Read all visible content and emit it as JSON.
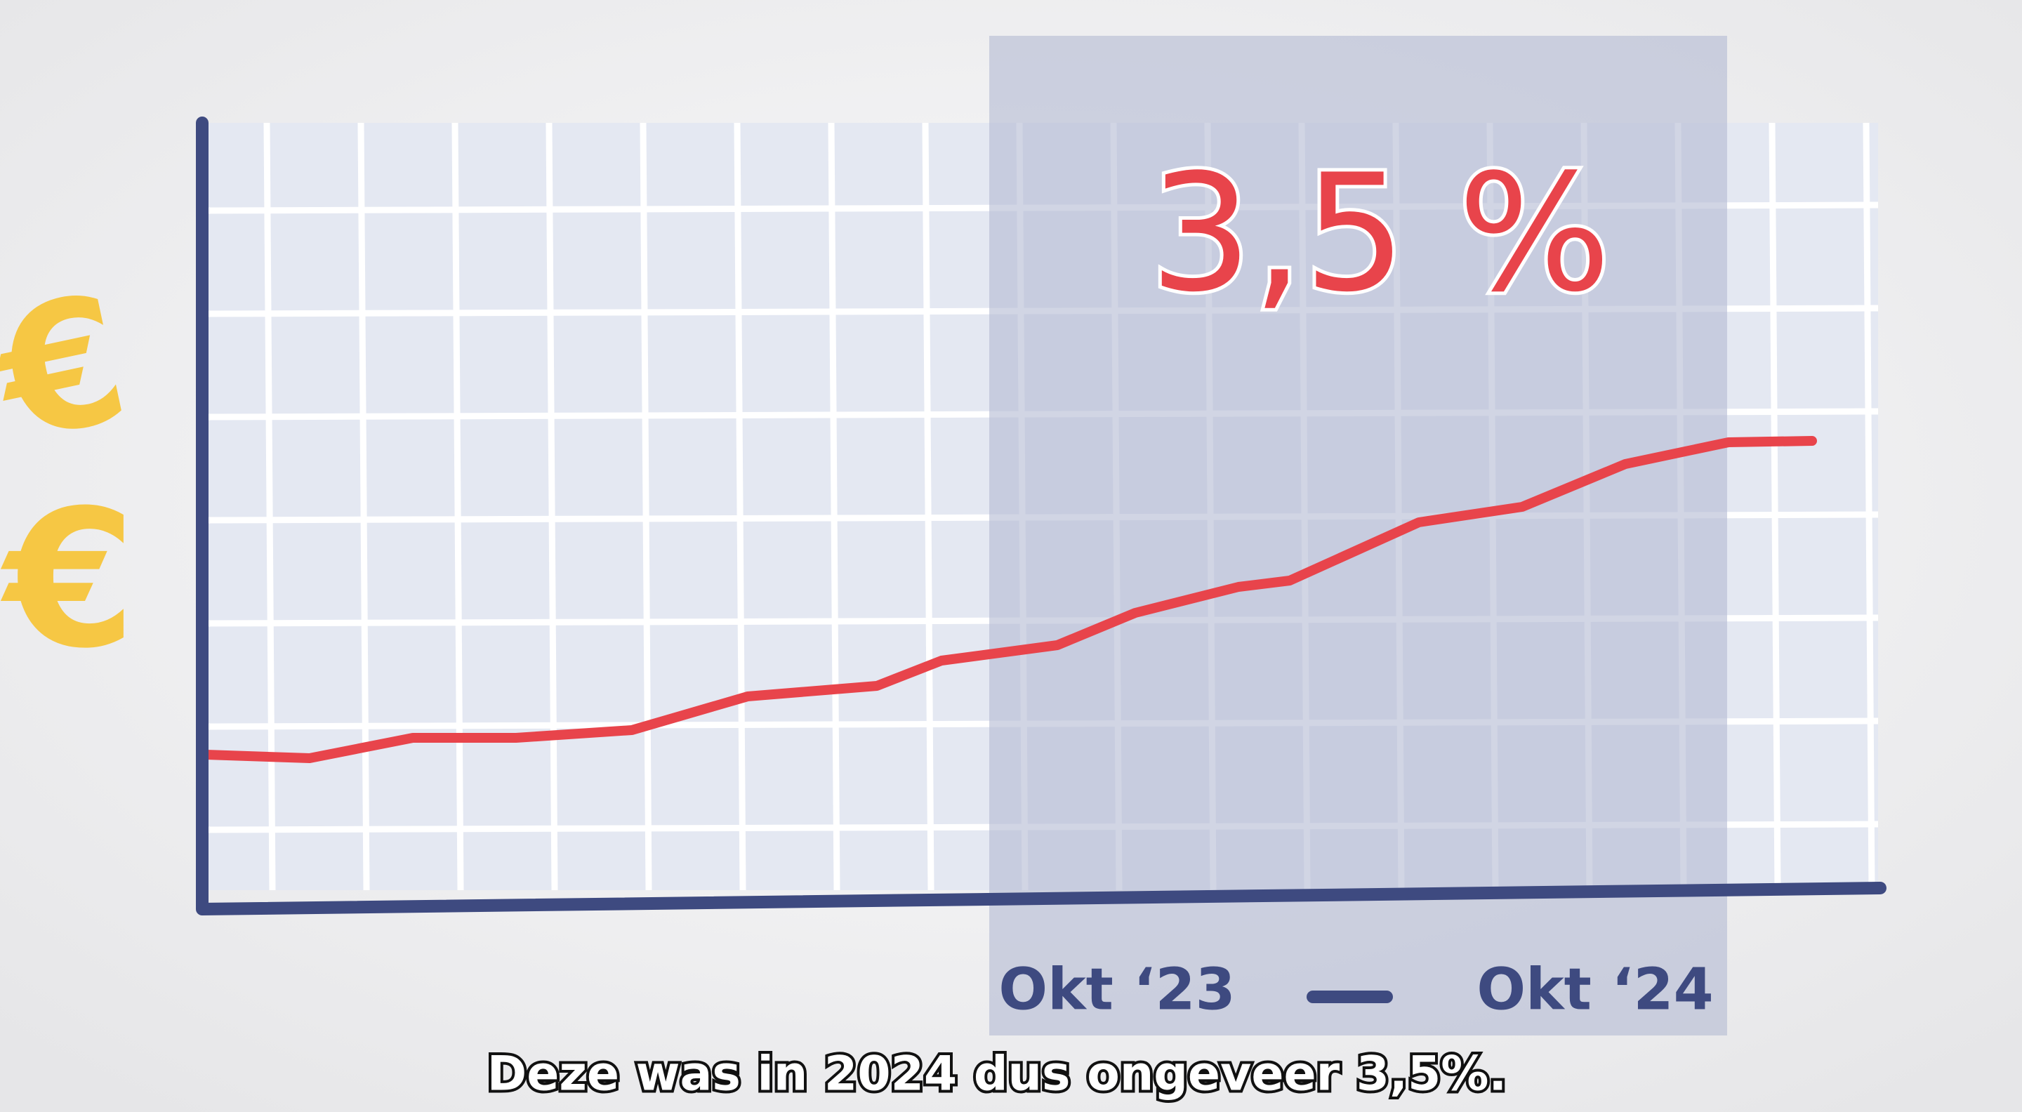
{
  "currency_symbols": [
    "€",
    "€"
  ],
  "highlight": {
    "label": "3,5 %",
    "period_start": "Okt ‘23",
    "period_end": "Okt ‘24"
  },
  "subtitle": "Deze was in 2024 dus ongeveer 3,5%."
}
